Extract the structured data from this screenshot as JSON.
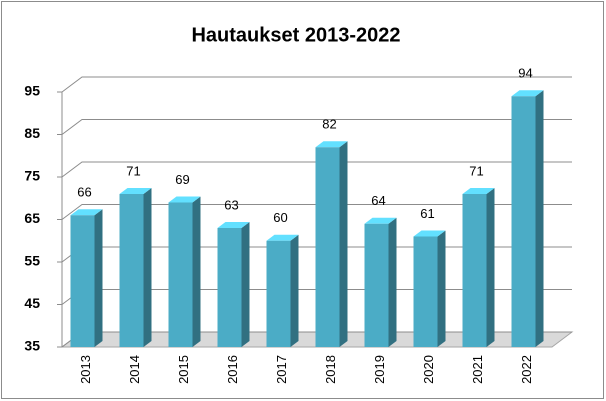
{
  "chart_data": {
    "type": "bar3d",
    "title": "Hautaukset 2013-2022",
    "categories": [
      "2013",
      "2014",
      "2015",
      "2016",
      "2017",
      "2018",
      "2019",
      "2020",
      "2021",
      "2022"
    ],
    "values": [
      66,
      71,
      69,
      63,
      60,
      82,
      64,
      61,
      71,
      94
    ],
    "color": "#4bacc6",
    "ylim": [
      35,
      95
    ],
    "yticks": [
      35,
      45,
      55,
      65,
      75,
      85,
      95
    ],
    "grid": true
  }
}
